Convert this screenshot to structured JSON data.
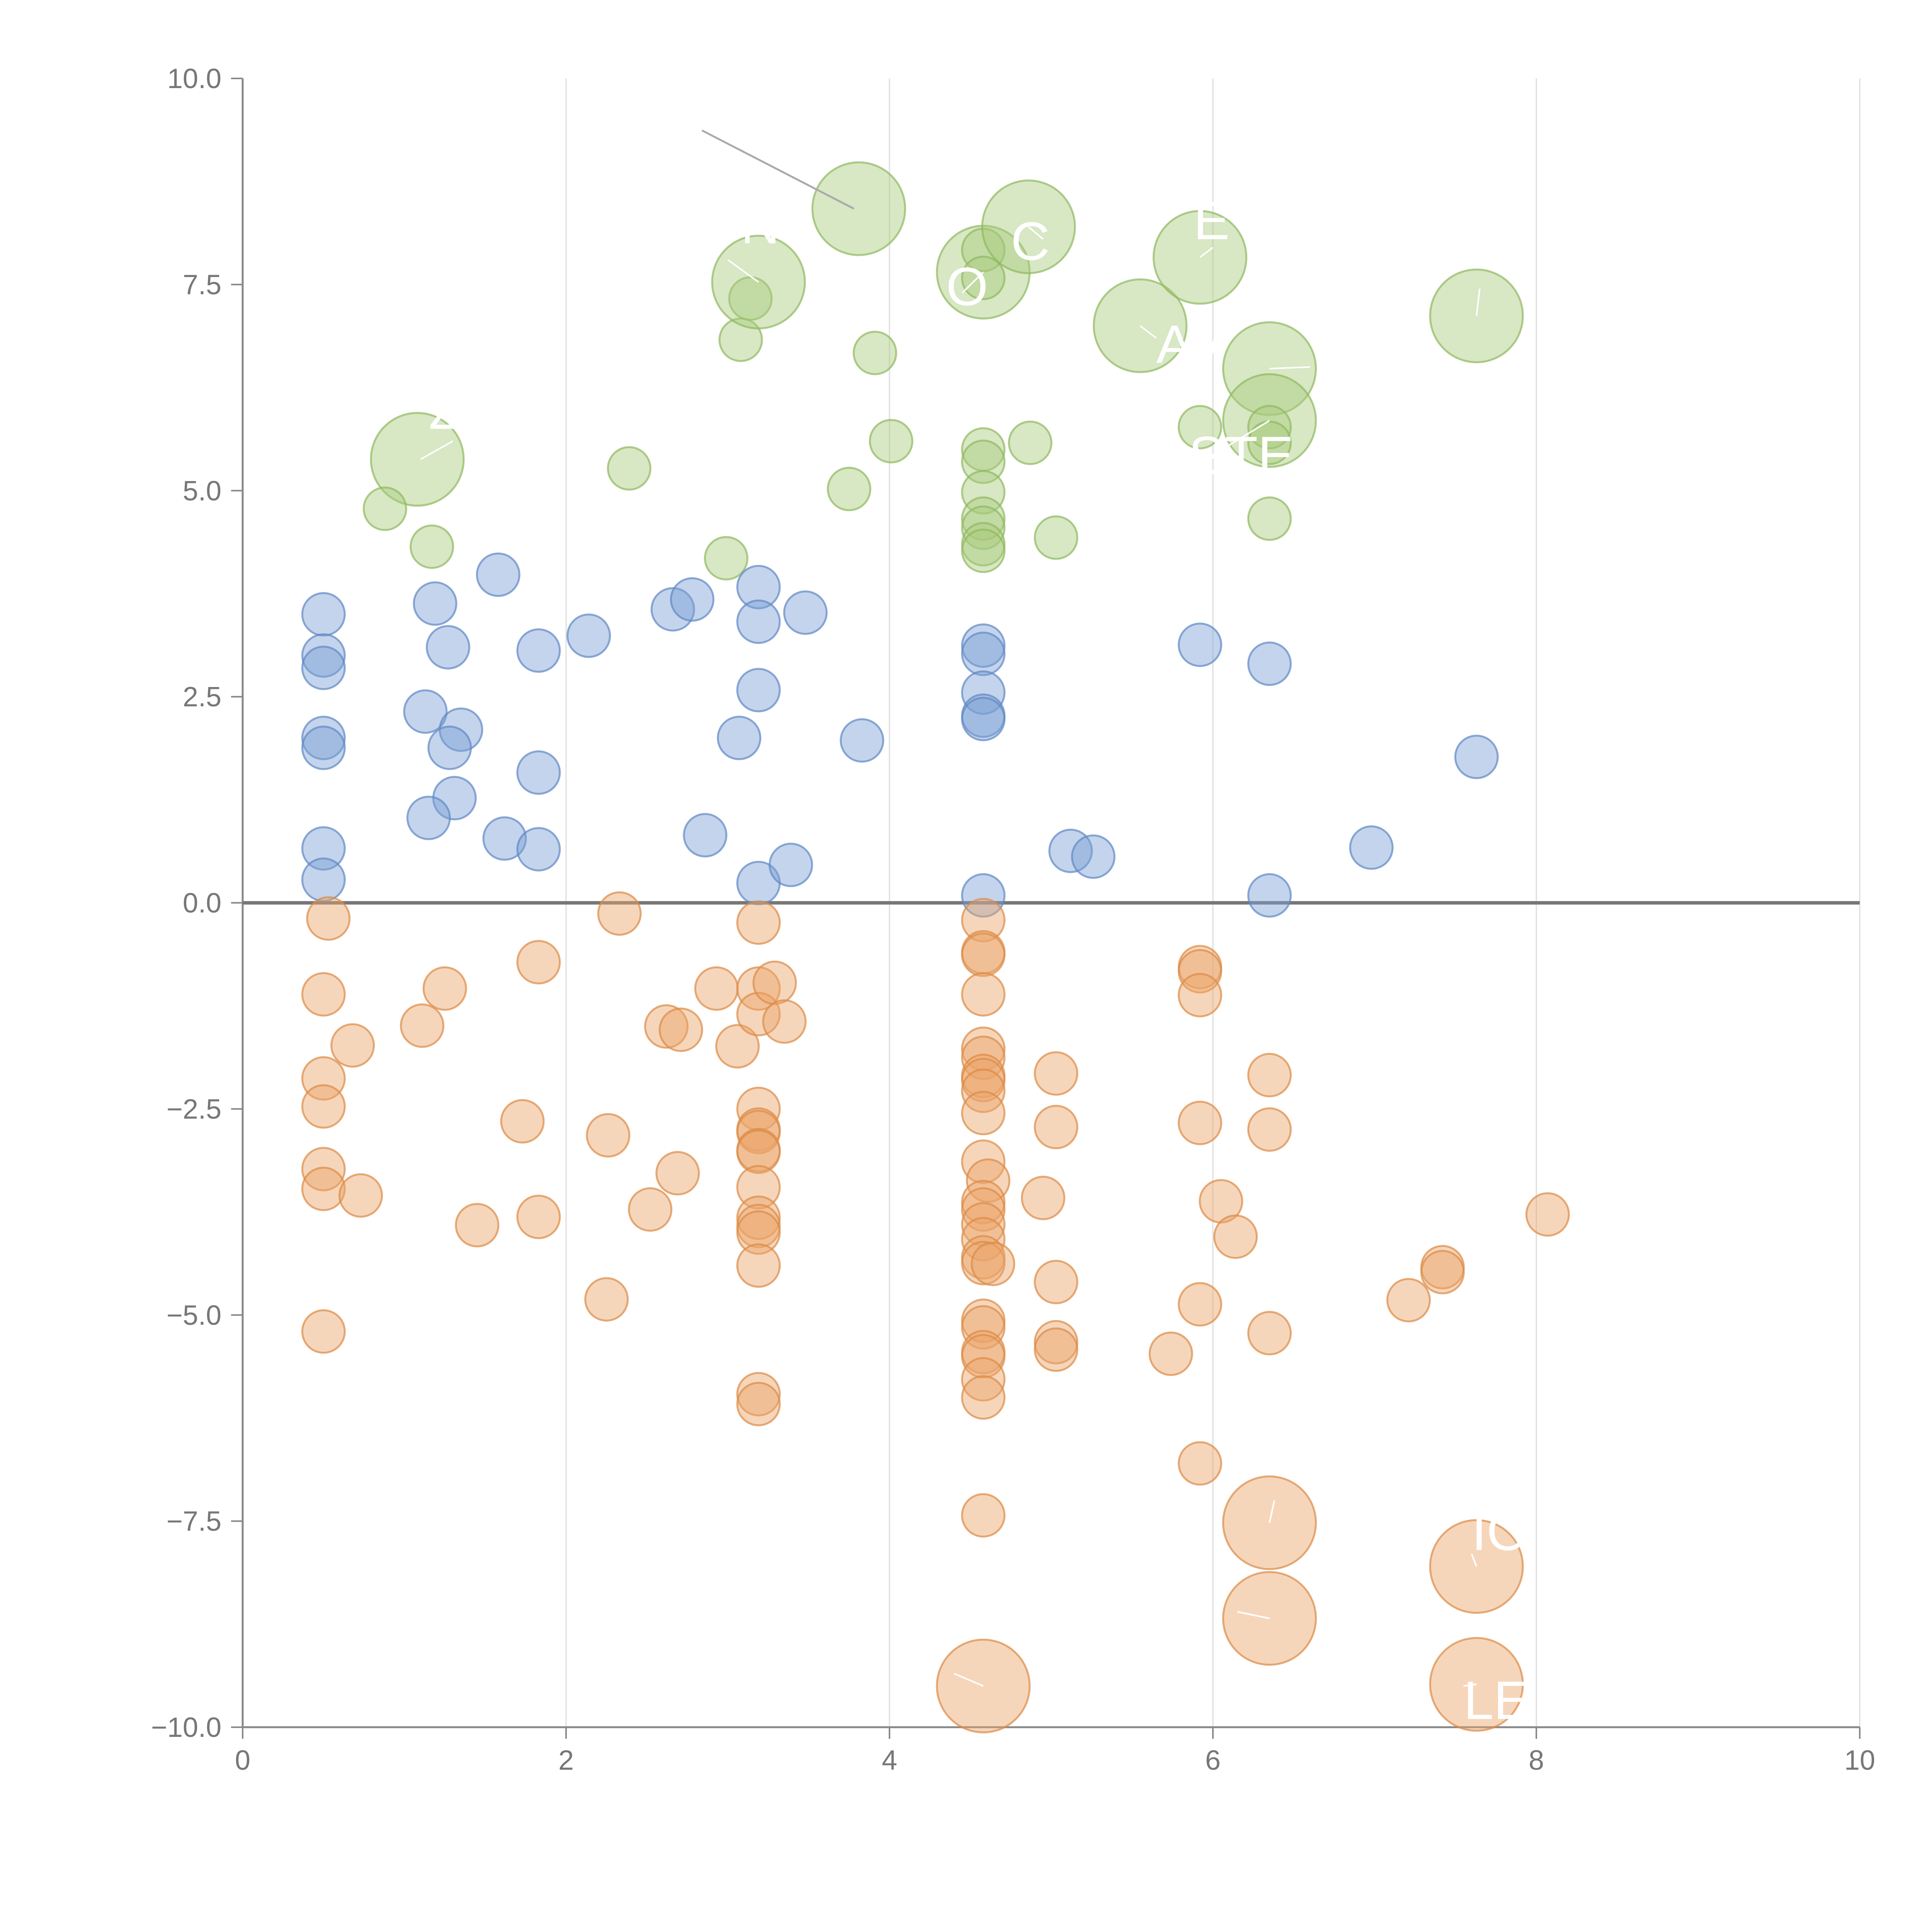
{
  "chart_data": {
    "type": "scatter",
    "title": "",
    "xlabel": "",
    "ylabel": "",
    "xlim": [
      0,
      10
    ],
    "ylim": [
      -10,
      10
    ],
    "x_ticks": [
      0,
      2,
      4,
      6,
      8,
      10
    ],
    "x_tick_labels": [
      "0",
      "2",
      "4",
      "6",
      "8",
      "10"
    ],
    "y_ticks": [
      10,
      7.5,
      5,
      2.5,
      0,
      -2.5,
      -5,
      -7.5,
      -10
    ],
    "y_tick_labels": [
      "10.0",
      "7.5",
      "5.0",
      "2.5",
      "0.0",
      "−2.5",
      "−5.0",
      "−7.5",
      "−10.0"
    ],
    "vertical_grid": true,
    "zero_line": 0,
    "colors": {
      "green": "#a9c97c",
      "blue": "#7ba0d4",
      "orange": "#eaa468",
      "green_stroke": "#8fb85e",
      "blue_stroke": "#5f87c4",
      "orange_stroke": "#dc8a46"
    },
    "series": [
      {
        "name": "green",
        "color": "green",
        "points": [
          {
            "x": 1.08,
            "y": 5.38,
            "size": 3
          },
          {
            "x": 0.88,
            "y": 4.78,
            "size": 1
          },
          {
            "x": 1.17,
            "y": 4.32,
            "size": 1
          },
          {
            "x": 2.39,
            "y": 5.27,
            "size": 1
          },
          {
            "x": 2.99,
            "y": 4.18,
            "size": 1
          },
          {
            "x": 3.08,
            "y": 6.83,
            "size": 1
          },
          {
            "x": 3.14,
            "y": 7.33,
            "size": 1
          },
          {
            "x": 3.19,
            "y": 7.53,
            "size": 3
          },
          {
            "x": 3.75,
            "y": 5.02,
            "size": 1
          },
          {
            "x": 3.81,
            "y": 8.42,
            "size": 3
          },
          {
            "x": 3.91,
            "y": 6.67,
            "size": 1
          },
          {
            "x": 4.01,
            "y": 5.6,
            "size": 1
          },
          {
            "x": 4.58,
            "y": 7.65,
            "size": 3
          },
          {
            "x": 4.58,
            "y": 7.92,
            "size": 1
          },
          {
            "x": 4.58,
            "y": 7.58,
            "size": 1
          },
          {
            "x": 4.58,
            "y": 5.5,
            "size": 1
          },
          {
            "x": 4.58,
            "y": 5.35,
            "size": 1
          },
          {
            "x": 4.58,
            "y": 4.98,
            "size": 1
          },
          {
            "x": 4.58,
            "y": 4.66,
            "size": 1
          },
          {
            "x": 4.58,
            "y": 4.55,
            "size": 1
          },
          {
            "x": 4.58,
            "y": 4.35,
            "size": 1
          },
          {
            "x": 4.58,
            "y": 4.27,
            "size": 1
          },
          {
            "x": 4.86,
            "y": 8.2,
            "size": 3
          },
          {
            "x": 4.87,
            "y": 5.58,
            "size": 1
          },
          {
            "x": 5.03,
            "y": 4.43,
            "size": 1
          },
          {
            "x": 5.55,
            "y": 7.0,
            "size": 3
          },
          {
            "x": 5.92,
            "y": 7.83,
            "size": 3
          },
          {
            "x": 5.92,
            "y": 5.77,
            "size": 1
          },
          {
            "x": 6.35,
            "y": 6.48,
            "size": 3
          },
          {
            "x": 6.35,
            "y": 5.85,
            "size": 3
          },
          {
            "x": 6.35,
            "y": 5.77,
            "size": 1
          },
          {
            "x": 6.35,
            "y": 5.58,
            "size": 1
          },
          {
            "x": 6.35,
            "y": 4.66,
            "size": 1
          },
          {
            "x": 7.63,
            "y": 7.12,
            "size": 3
          }
        ]
      },
      {
        "name": "blue",
        "color": "blue",
        "points": [
          {
            "x": 0.5,
            "y": 3.5,
            "size": 1
          },
          {
            "x": 0.5,
            "y": 3.0,
            "size": 1
          },
          {
            "x": 0.5,
            "y": 2.85,
            "size": 1
          },
          {
            "x": 0.5,
            "y": 2.0,
            "size": 1
          },
          {
            "x": 0.5,
            "y": 1.88,
            "size": 1
          },
          {
            "x": 0.5,
            "y": 0.66,
            "size": 1
          },
          {
            "x": 0.5,
            "y": 0.28,
            "size": 1
          },
          {
            "x": 1.19,
            "y": 3.63,
            "size": 1
          },
          {
            "x": 1.27,
            "y": 3.1,
            "size": 1
          },
          {
            "x": 1.13,
            "y": 2.32,
            "size": 1
          },
          {
            "x": 1.35,
            "y": 2.1,
            "size": 1
          },
          {
            "x": 1.28,
            "y": 1.88,
            "size": 1
          },
          {
            "x": 1.31,
            "y": 1.27,
            "size": 1
          },
          {
            "x": 1.15,
            "y": 1.03,
            "size": 1
          },
          {
            "x": 1.58,
            "y": 3.98,
            "size": 1
          },
          {
            "x": 1.62,
            "y": 0.78,
            "size": 1
          },
          {
            "x": 1.83,
            "y": 3.06,
            "size": 1
          },
          {
            "x": 1.83,
            "y": 1.58,
            "size": 1
          },
          {
            "x": 1.83,
            "y": 0.65,
            "size": 1
          },
          {
            "x": 2.14,
            "y": 3.24,
            "size": 1
          },
          {
            "x": 2.66,
            "y": 3.56,
            "size": 1
          },
          {
            "x": 2.78,
            "y": 3.68,
            "size": 1
          },
          {
            "x": 2.86,
            "y": 0.82,
            "size": 1
          },
          {
            "x": 3.07,
            "y": 2.0,
            "size": 1
          },
          {
            "x": 3.19,
            "y": 3.83,
            "size": 1
          },
          {
            "x": 3.19,
            "y": 3.41,
            "size": 1
          },
          {
            "x": 3.19,
            "y": 2.58,
            "size": 1
          },
          {
            "x": 3.19,
            "y": 0.24,
            "size": 1
          },
          {
            "x": 3.39,
            "y": 0.46,
            "size": 1
          },
          {
            "x": 3.48,
            "y": 3.52,
            "size": 1
          },
          {
            "x": 3.83,
            "y": 1.97,
            "size": 1
          },
          {
            "x": 4.58,
            "y": 3.12,
            "size": 1
          },
          {
            "x": 4.58,
            "y": 3.02,
            "size": 1
          },
          {
            "x": 4.58,
            "y": 2.55,
            "size": 1
          },
          {
            "x": 4.58,
            "y": 2.27,
            "size": 1
          },
          {
            "x": 4.58,
            "y": 2.23,
            "size": 1
          },
          {
            "x": 4.58,
            "y": 0.09,
            "size": 1
          },
          {
            "x": 5.12,
            "y": 0.63,
            "size": 1
          },
          {
            "x": 5.26,
            "y": 0.56,
            "size": 1
          },
          {
            "x": 5.92,
            "y": 3.13,
            "size": 1
          },
          {
            "x": 6.35,
            "y": 2.9,
            "size": 1
          },
          {
            "x": 6.35,
            "y": 0.09,
            "size": 1
          },
          {
            "x": 6.98,
            "y": 0.67,
            "size": 1
          },
          {
            "x": 7.63,
            "y": 1.77,
            "size": 1
          }
        ]
      },
      {
        "name": "orange",
        "color": "orange",
        "points": [
          {
            "x": 0.53,
            "y": -0.19,
            "size": 1
          },
          {
            "x": 0.5,
            "y": -1.11,
            "size": 1
          },
          {
            "x": 0.5,
            "y": -2.13,
            "size": 1
          },
          {
            "x": 0.5,
            "y": -2.47,
            "size": 1
          },
          {
            "x": 0.5,
            "y": -3.23,
            "size": 1
          },
          {
            "x": 0.5,
            "y": -3.47,
            "size": 1
          },
          {
            "x": 0.5,
            "y": -5.2,
            "size": 1
          },
          {
            "x": 0.68,
            "y": -1.73,
            "size": 1
          },
          {
            "x": 0.73,
            "y": -3.55,
            "size": 1
          },
          {
            "x": 1.11,
            "y": -1.49,
            "size": 1
          },
          {
            "x": 1.25,
            "y": -1.04,
            "size": 1
          },
          {
            "x": 1.45,
            "y": -3.91,
            "size": 1
          },
          {
            "x": 1.73,
            "y": -2.65,
            "size": 1
          },
          {
            "x": 1.83,
            "y": -0.72,
            "size": 1
          },
          {
            "x": 1.83,
            "y": -3.81,
            "size": 1
          },
          {
            "x": 2.25,
            "y": -4.81,
            "size": 1
          },
          {
            "x": 2.26,
            "y": -2.82,
            "size": 1
          },
          {
            "x": 2.33,
            "y": -0.13,
            "size": 1
          },
          {
            "x": 2.52,
            "y": -3.72,
            "size": 1
          },
          {
            "x": 2.62,
            "y": -1.5,
            "size": 1
          },
          {
            "x": 2.71,
            "y": -1.54,
            "size": 1
          },
          {
            "x": 2.69,
            "y": -3.28,
            "size": 1
          },
          {
            "x": 2.93,
            "y": -1.04,
            "size": 1
          },
          {
            "x": 3.06,
            "y": -1.74,
            "size": 1
          },
          {
            "x": 3.19,
            "y": -0.24,
            "size": 1
          },
          {
            "x": 3.19,
            "y": -1.04,
            "size": 1
          },
          {
            "x": 3.19,
            "y": -1.35,
            "size": 1
          },
          {
            "x": 3.29,
            "y": -0.97,
            "size": 1
          },
          {
            "x": 3.35,
            "y": -1.44,
            "size": 1
          },
          {
            "x": 3.19,
            "y": -2.5,
            "size": 1
          },
          {
            "x": 3.19,
            "y": -2.75,
            "size": 1
          },
          {
            "x": 3.19,
            "y": -2.78,
            "size": 1
          },
          {
            "x": 3.19,
            "y": -3.0,
            "size": 1
          },
          {
            "x": 3.19,
            "y": -3.02,
            "size": 1
          },
          {
            "x": 3.19,
            "y": -3.45,
            "size": 1
          },
          {
            "x": 3.19,
            "y": -3.82,
            "size": 1
          },
          {
            "x": 3.19,
            "y": -3.92,
            "size": 1
          },
          {
            "x": 3.19,
            "y": -4.0,
            "size": 1
          },
          {
            "x": 3.19,
            "y": -4.4,
            "size": 1
          },
          {
            "x": 3.19,
            "y": -5.96,
            "size": 1
          },
          {
            "x": 3.19,
            "y": -6.08,
            "size": 1
          },
          {
            "x": 4.58,
            "y": -0.21,
            "size": 1
          },
          {
            "x": 4.58,
            "y": -0.6,
            "size": 1
          },
          {
            "x": 4.58,
            "y": -0.63,
            "size": 1
          },
          {
            "x": 4.58,
            "y": -1.11,
            "size": 1
          },
          {
            "x": 4.58,
            "y": -1.77,
            "size": 1
          },
          {
            "x": 4.58,
            "y": -1.88,
            "size": 1
          },
          {
            "x": 4.58,
            "y": -2.1,
            "size": 1
          },
          {
            "x": 4.58,
            "y": -2.15,
            "size": 1
          },
          {
            "x": 4.58,
            "y": -2.28,
            "size": 1
          },
          {
            "x": 4.58,
            "y": -2.55,
            "size": 1
          },
          {
            "x": 4.58,
            "y": -3.14,
            "size": 1
          },
          {
            "x": 4.61,
            "y": -3.37,
            "size": 1
          },
          {
            "x": 4.58,
            "y": -3.63,
            "size": 1
          },
          {
            "x": 4.58,
            "y": -3.72,
            "size": 1
          },
          {
            "x": 4.58,
            "y": -3.9,
            "size": 1
          },
          {
            "x": 4.58,
            "y": -4.08,
            "size": 1
          },
          {
            "x": 4.58,
            "y": -4.3,
            "size": 1
          },
          {
            "x": 4.58,
            "y": -4.37,
            "size": 1
          },
          {
            "x": 4.64,
            "y": -4.38,
            "size": 1
          },
          {
            "x": 4.58,
            "y": -5.07,
            "size": 1
          },
          {
            "x": 4.58,
            "y": -5.15,
            "size": 1
          },
          {
            "x": 4.58,
            "y": -5.45,
            "size": 1
          },
          {
            "x": 4.58,
            "y": -5.5,
            "size": 1
          },
          {
            "x": 4.58,
            "y": -5.78,
            "size": 1
          },
          {
            "x": 4.58,
            "y": -6.0,
            "size": 1
          },
          {
            "x": 4.58,
            "y": -7.43,
            "size": 1
          },
          {
            "x": 4.58,
            "y": -9.5,
            "size": 3
          },
          {
            "x": 4.95,
            "y": -3.58,
            "size": 1
          },
          {
            "x": 5.03,
            "y": -2.07,
            "size": 1
          },
          {
            "x": 5.03,
            "y": -2.72,
            "size": 1
          },
          {
            "x": 5.03,
            "y": -4.6,
            "size": 1
          },
          {
            "x": 5.03,
            "y": -5.33,
            "size": 1
          },
          {
            "x": 5.03,
            "y": -5.42,
            "size": 1
          },
          {
            "x": 5.74,
            "y": -5.47,
            "size": 1
          },
          {
            "x": 5.92,
            "y": -0.78,
            "size": 1
          },
          {
            "x": 5.92,
            "y": -0.83,
            "size": 1
          },
          {
            "x": 5.92,
            "y": -1.12,
            "size": 1
          },
          {
            "x": 5.92,
            "y": -2.67,
            "size": 1
          },
          {
            "x": 5.92,
            "y": -4.87,
            "size": 1
          },
          {
            "x": 5.92,
            "y": -6.8,
            "size": 1
          },
          {
            "x": 6.05,
            "y": -3.62,
            "size": 1
          },
          {
            "x": 6.14,
            "y": -4.05,
            "size": 1
          },
          {
            "x": 6.35,
            "y": -2.09,
            "size": 1
          },
          {
            "x": 6.35,
            "y": -2.75,
            "size": 1
          },
          {
            "x": 6.35,
            "y": -5.22,
            "size": 1
          },
          {
            "x": 6.35,
            "y": -7.52,
            "size": 3
          },
          {
            "x": 6.35,
            "y": -8.68,
            "size": 3
          },
          {
            "x": 7.21,
            "y": -4.82,
            "size": 1
          },
          {
            "x": 7.42,
            "y": -4.42,
            "size": 1
          },
          {
            "x": 7.42,
            "y": -4.48,
            "size": 1
          },
          {
            "x": 7.63,
            "y": -8.05,
            "size": 3
          },
          {
            "x": 7.63,
            "y": -9.48,
            "size": 3
          },
          {
            "x": 8.07,
            "y": -3.78,
            "size": 1
          }
        ]
      }
    ],
    "annotations": [
      {
        "text": "Z",
        "x": 1.15,
        "y": 5.75,
        "lx1": 1.1,
        "ly1": 5.38,
        "lx2": 1.3,
        "ly2": 5.6
      },
      {
        "text": "N",
        "x": 3.08,
        "y": 8.0,
        "lx1": 3.19,
        "ly1": 7.53,
        "lx2": 3.0,
        "ly2": 7.8
      },
      {
        "text": "C",
        "x": 4.75,
        "y": 7.8,
        "lx1": 4.86,
        "ly1": 8.2,
        "lx2": 4.95,
        "ly2": 8.05
      },
      {
        "text": "O",
        "x": 4.35,
        "y": 7.25,
        "lx1": 4.58,
        "ly1": 7.65,
        "lx2": 4.45,
        "ly2": 7.4
      },
      {
        "text": "E",
        "x": 5.88,
        "y": 8.05,
        "lx1": 5.92,
        "ly1": 7.83,
        "lx2": 6.0,
        "ly2": 7.95
      },
      {
        "text": "AV",
        "x": 5.65,
        "y": 6.55,
        "lx1": 5.55,
        "ly1": 7.0,
        "lx2": 5.65,
        "ly2": 6.85
      },
      {
        "text": "STE",
        "x": 5.85,
        "y": 5.2,
        "lx1": 6.35,
        "ly1": 5.85,
        "lx2": 6.1,
        "ly2": 5.55
      },
      {
        "text": "",
        "x": 6.6,
        "y": 6.5,
        "lx1": 6.35,
        "ly1": 6.48,
        "lx2": 6.6,
        "ly2": 6.5
      },
      {
        "text": "",
        "x": 7.6,
        "y": 7.2,
        "lx1": 7.63,
        "ly1": 7.12,
        "lx2": 7.65,
        "ly2": 7.45
      },
      {
        "text": "",
        "x": 4.1,
        "y": -9.0,
        "lx1": 4.58,
        "ly1": -9.5,
        "lx2": 4.4,
        "ly2": -9.35
      },
      {
        "text": "",
        "x": 6.0,
        "y": -6.6,
        "lx1": 6.35,
        "ly1": -7.52,
        "lx2": 6.38,
        "ly2": -7.25
      },
      {
        "text": "",
        "x": 6.0,
        "y": -8.4,
        "lx1": 6.35,
        "ly1": -8.68,
        "lx2": 6.15,
        "ly2": -8.6
      },
      {
        "text": "IO",
        "x": 7.6,
        "y": -7.85,
        "lx1": 7.63,
        "ly1": -8.05,
        "lx2": 7.6,
        "ly2": -7.9
      },
      {
        "text": "LE",
        "x": 7.55,
        "y": -9.9,
        "lx1": 7.63,
        "ly1": -9.48,
        "lx2": 7.55,
        "ly2": -9.5
      }
    ],
    "leader_line": {
      "x1": 2.84,
      "y1": 9.37,
      "x2": 3.78,
      "y2": 8.42
    }
  }
}
